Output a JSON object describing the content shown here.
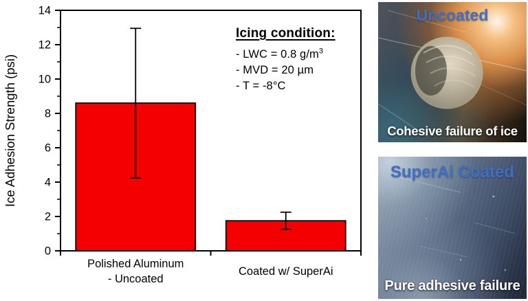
{
  "colors": {
    "bar_red": "#f40000",
    "axis_black": "#000000",
    "photo_label_blue": "#3e6fc4",
    "caption_white": "#ffffff"
  },
  "chart_data": {
    "type": "bar",
    "title": "",
    "xlabel": "",
    "ylabel": "Ice Adhesion Strength (psi)",
    "ylim": [
      0,
      14
    ],
    "ytick_major": 2,
    "ytick_minor": 1,
    "grid": false,
    "legend": "none",
    "bar_color": "#f40000",
    "categories": [
      "Polished Aluminum - Uncoated",
      "Coated w/ SuperAi"
    ],
    "categories_display": [
      [
        "Polished Aluminum",
        "- Uncoated"
      ],
      [
        "Coated w/ SuperAi"
      ]
    ],
    "values": [
      8.6,
      1.75
    ],
    "error_bars": [
      4.35,
      0.5
    ],
    "annotation": {
      "title": "Icing condition:",
      "lines": [
        {
          "text": "- LWC = 0.8 g/m",
          "sup": "3"
        },
        {
          "text": "- MVD = 20 µm",
          "sup": ""
        },
        {
          "text": "- T = -8°C",
          "sup": ""
        }
      ]
    }
  },
  "photos": [
    {
      "label": "Uncoated",
      "caption": "Cohesive failure of ice"
    },
    {
      "label": "SuperAi Coated",
      "caption": "Pure adhesive failure"
    }
  ]
}
